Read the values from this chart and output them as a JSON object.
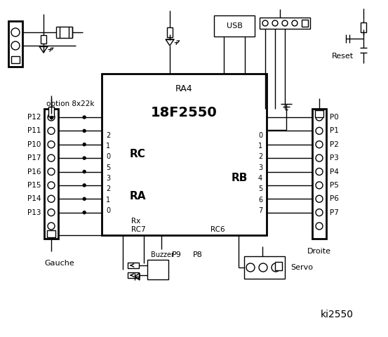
{
  "title": "ki2550",
  "bg_color": "#ffffff",
  "chip_label": "18F2550",
  "chip_sublabel": "RA4",
  "rc_label": "RC",
  "ra_label": "RA",
  "rb_label": "RB",
  "rc_pins": [
    "2",
    "1",
    "0",
    "5",
    "3",
    "2",
    "1",
    "0"
  ],
  "rb_pins": [
    "0",
    "1",
    "2",
    "3",
    "4",
    "5",
    "6",
    "7"
  ],
  "left_labels": [
    "P12",
    "P11",
    "P10",
    "P17",
    "P16",
    "P15",
    "P14",
    "P13"
  ],
  "right_labels": [
    "P0",
    "P1",
    "P2",
    "P3",
    "P4",
    "P5",
    "P6",
    "P7"
  ],
  "option_text": "option 8x22k",
  "rx_label": "Rx",
  "rc7_label": "RC7",
  "rc6_label": "RC6",
  "reset_label": "Reset",
  "usb_label": "USB",
  "gauche_label": "Gauche",
  "droite_label": "Droite",
  "buzzer_label": "Buzzer",
  "servo_label": "Servo",
  "p8_label": "P8",
  "p9_label": "P9"
}
